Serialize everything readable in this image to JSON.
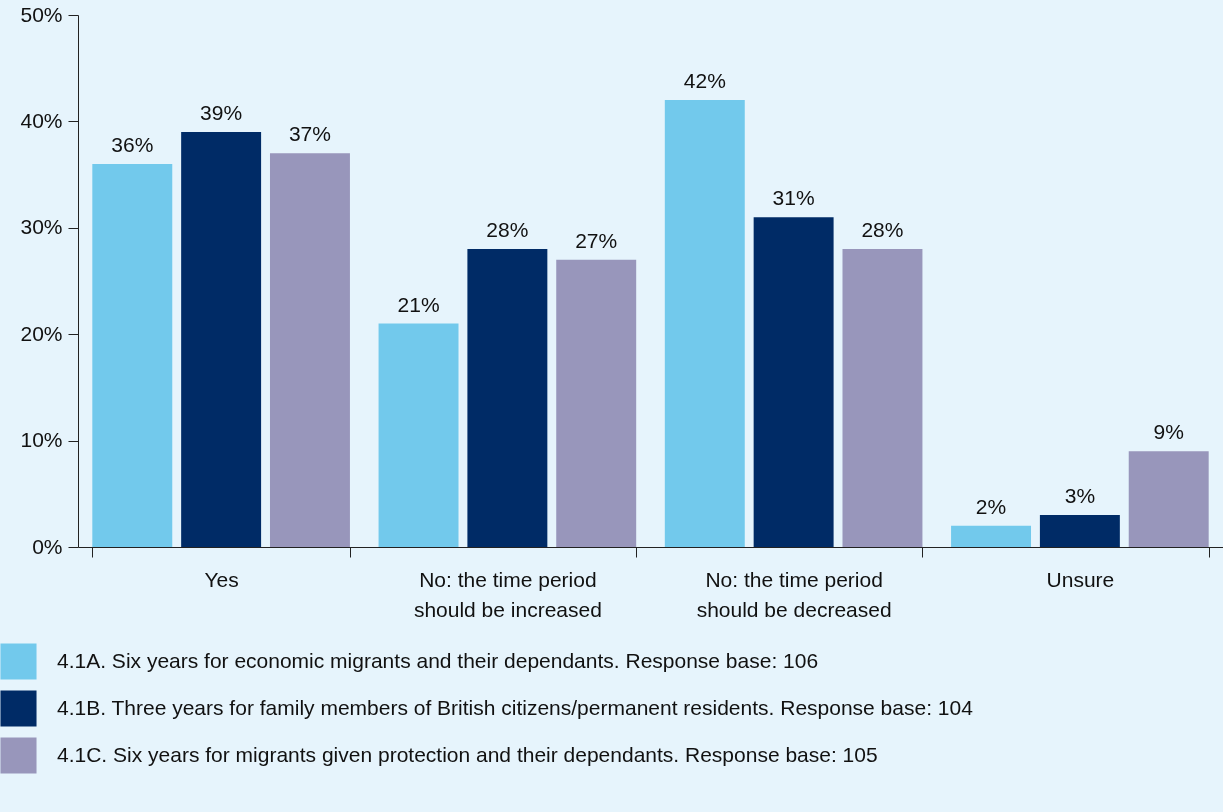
{
  "chart_data": {
    "type": "bar",
    "categories": [
      "Yes",
      "No: the time period should be increased",
      "No: the time period should be decreased",
      "Unsure"
    ],
    "series": [
      {
        "name": "4.1A. Six years for economic migrants and their dependants. Response base: 106",
        "color": "#72c9ec",
        "values": [
          36,
          21,
          42,
          2
        ]
      },
      {
        "name": "4.1B. Three years for family members of British citizens/permanent residents. Response base: 104",
        "color": "#002b66",
        "values": [
          39,
          28,
          31,
          3
        ]
      },
      {
        "name": "4.1C. Six years for migrants given protection and their dependants. Response base: 105",
        "color": "#9896bb",
        "values": [
          37,
          27,
          28,
          9
        ]
      }
    ],
    "ylim": [
      0,
      50
    ],
    "yticks": [
      {
        "value": 0,
        "label": "0%"
      },
      {
        "value": 10,
        "label": "10%"
      },
      {
        "value": 20,
        "label": "20%"
      },
      {
        "value": 30,
        "label": "30%"
      },
      {
        "value": 40,
        "label": "40%"
      },
      {
        "value": 50,
        "label": "50%"
      }
    ],
    "value_labels": [
      [
        "36%",
        "21%",
        "42%",
        "2%"
      ],
      [
        "39%",
        "28%",
        "31%",
        "3%"
      ],
      [
        "37%",
        "27%",
        "28%",
        "9%"
      ]
    ],
    "grid": false,
    "legend": "bottom left"
  }
}
